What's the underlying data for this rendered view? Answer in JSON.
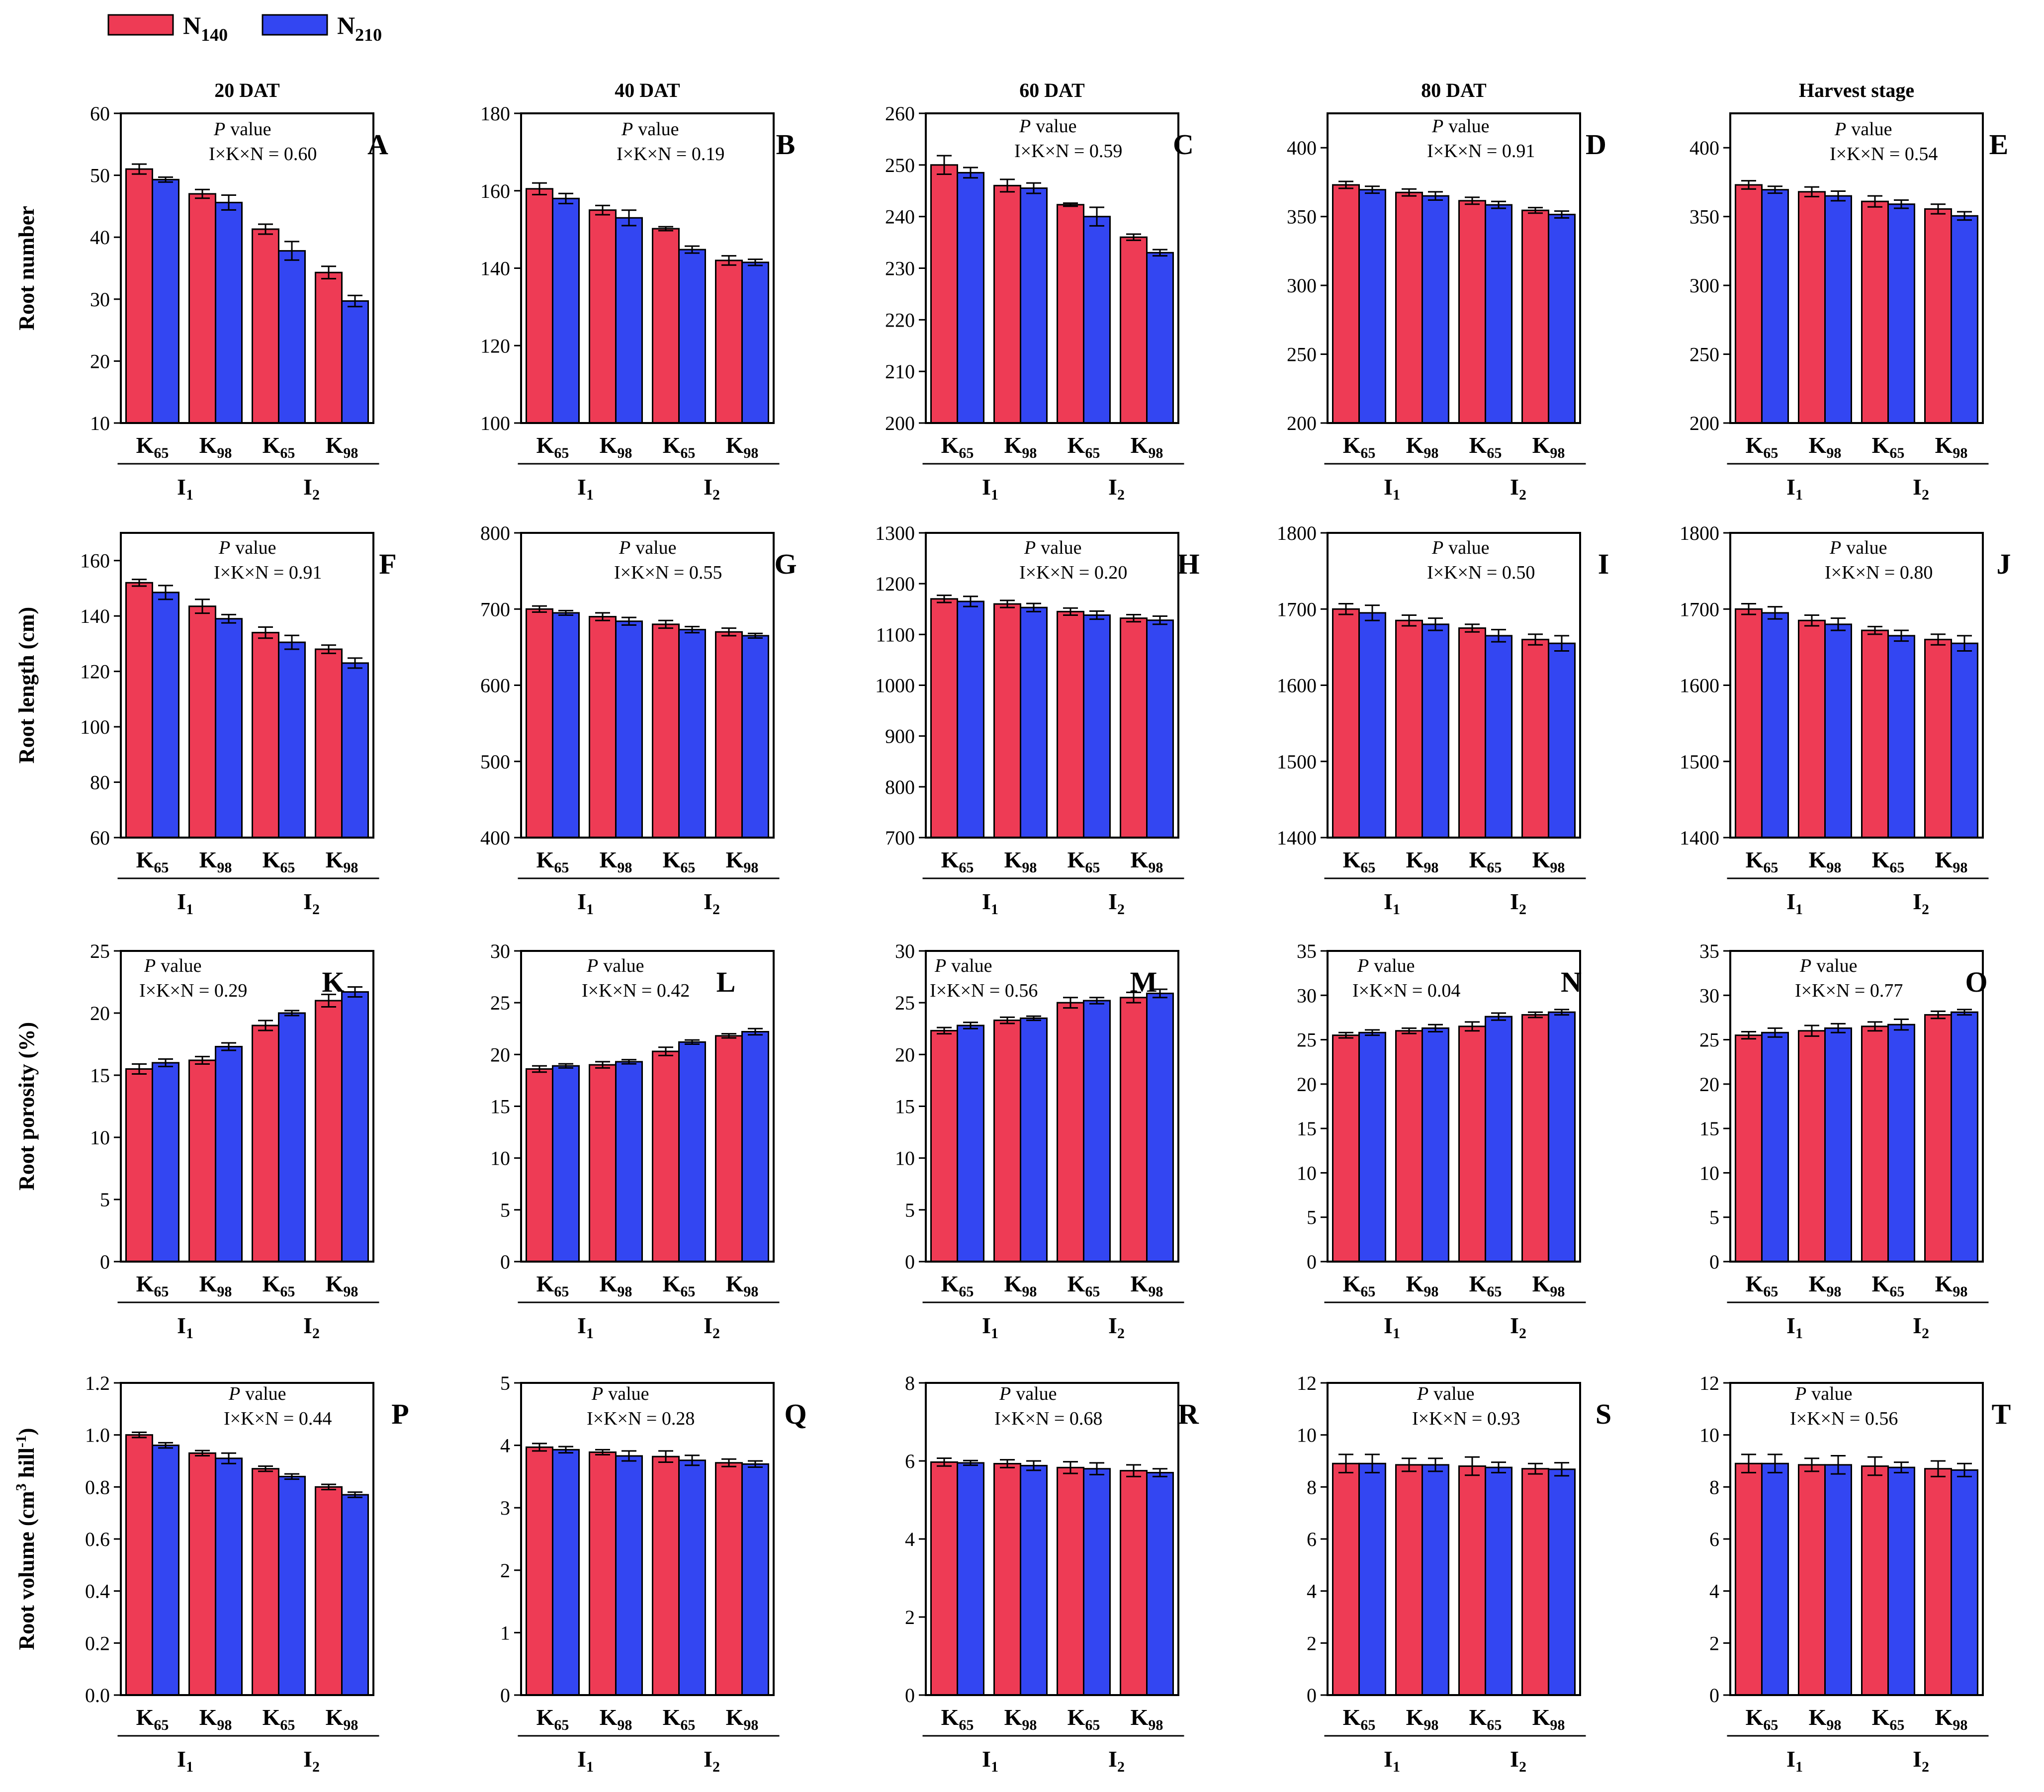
{
  "legend": [
    {
      "name": "N",
      "sub": "140",
      "color": "#EE3B55"
    },
    {
      "name": "N",
      "sub": "210",
      "color": "#3346F2"
    }
  ],
  "categories": [
    {
      "main": "K",
      "sub": "65"
    },
    {
      "main": "K",
      "sub": "98"
    },
    {
      "main": "K",
      "sub": "65"
    },
    {
      "main": "K",
      "sub": "98"
    }
  ],
  "groups": [
    {
      "main": "I",
      "sub": "1"
    },
    {
      "main": "I",
      "sub": "2"
    }
  ],
  "stage_titles": [
    "20 DAT",
    "40 DAT",
    "60 DAT",
    "80 DAT",
    "Harvest stage"
  ],
  "rows": [
    {
      "ylabel": "Root number",
      "ylabel_super": ""
    },
    {
      "ylabel": "Root length (cm)",
      "ylabel_super": ""
    },
    {
      "ylabel": "Root porosity (%)",
      "ylabel_super": ""
    },
    {
      "ylabel": "Root volume (cm",
      "ylabel_super": "3",
      "ylabel_tail": " hill",
      "ylabel_super2": "-1",
      "ylabel_end": ")"
    }
  ],
  "p_value_label": "value",
  "p_value_italic": "P",
  "chart_data": [
    {
      "type": "bar",
      "letter": "A",
      "row": 0,
      "col": 0,
      "interaction": "I×K×N = 0.60",
      "ylim": [
        10,
        60
      ],
      "yticks": [
        10,
        20,
        30,
        40,
        50,
        60
      ],
      "series": [
        {
          "name": "N140",
          "values": [
            51.0,
            47.0,
            41.3,
            34.3
          ],
          "errors": [
            0.8,
            0.7,
            0.8,
            1.0
          ]
        },
        {
          "name": "N210",
          "values": [
            49.3,
            45.6,
            37.8,
            29.7
          ],
          "errors": [
            0.4,
            1.2,
            1.5,
            0.9
          ]
        }
      ]
    },
    {
      "type": "bar",
      "letter": "B",
      "row": 0,
      "col": 1,
      "interaction": "I×K×N = 0.19",
      "ylim": [
        100,
        180
      ],
      "yticks": [
        100,
        120,
        140,
        160,
        180
      ],
      "series": [
        {
          "name": "N140",
          "values": [
            160.5,
            155.0,
            150.2,
            142.0
          ],
          "errors": [
            1.5,
            1.2,
            0.5,
            1.2
          ]
        },
        {
          "name": "N210",
          "values": [
            158.0,
            153.0,
            144.8,
            141.5
          ],
          "errors": [
            1.3,
            2.0,
            0.9,
            0.8
          ]
        }
      ]
    },
    {
      "type": "bar",
      "letter": "C",
      "row": 0,
      "col": 2,
      "interaction": "I×K×N = 0.59",
      "ylim": [
        200,
        260
      ],
      "yticks": [
        200,
        210,
        220,
        230,
        240,
        250,
        260
      ],
      "series": [
        {
          "name": "N140",
          "values": [
            250.0,
            246.0,
            242.3,
            236.0
          ],
          "errors": [
            1.8,
            1.2,
            0.3,
            0.6
          ]
        },
        {
          "name": "N210",
          "values": [
            248.5,
            245.5,
            240.0,
            233.0
          ],
          "errors": [
            1.0,
            1.0,
            1.8,
            0.6
          ]
        }
      ]
    },
    {
      "type": "bar",
      "letter": "D",
      "row": 0,
      "col": 3,
      "interaction": "I×K×N = 0.91",
      "ylim": [
        200,
        425
      ],
      "yticks": [
        200,
        250,
        300,
        350,
        400
      ],
      "series": [
        {
          "name": "N140",
          "values": [
            373.0,
            367.5,
            361.5,
            354.5
          ],
          "errors": [
            2.5,
            2.5,
            2.5,
            2.0
          ]
        },
        {
          "name": "N210",
          "values": [
            369.5,
            365.0,
            358.5,
            351.5
          ],
          "errors": [
            2.5,
            3.0,
            2.5,
            2.5
          ]
        }
      ]
    },
    {
      "type": "bar",
      "letter": "E",
      "row": 0,
      "col": 4,
      "interaction": "I×K×N = 0.54",
      "ylim": [
        200,
        425
      ],
      "yticks": [
        200,
        250,
        300,
        350,
        400
      ],
      "series": [
        {
          "name": "N140",
          "values": [
            373.0,
            368.0,
            361.0,
            355.5
          ],
          "errors": [
            3.0,
            3.5,
            4.0,
            3.5
          ]
        },
        {
          "name": "N210",
          "values": [
            369.5,
            365.0,
            359.0,
            350.5
          ],
          "errors": [
            2.5,
            3.5,
            3.0,
            3.0
          ]
        }
      ]
    },
    {
      "type": "bar",
      "letter": "F",
      "row": 1,
      "col": 0,
      "interaction": "I×K×N = 0.91",
      "ylim": [
        60,
        170
      ],
      "yticks": [
        60,
        80,
        100,
        120,
        140,
        160
      ],
      "series": [
        {
          "name": "N140",
          "values": [
            152.0,
            143.5,
            134.0,
            128.0
          ],
          "errors": [
            1.2,
            2.5,
            2.0,
            1.5
          ]
        },
        {
          "name": "N210",
          "values": [
            148.5,
            139.0,
            130.5,
            123.0
          ],
          "errors": [
            2.5,
            1.5,
            2.5,
            1.8
          ]
        }
      ]
    },
    {
      "type": "bar",
      "letter": "G",
      "row": 1,
      "col": 1,
      "interaction": "I×K×N = 0.55",
      "ylim": [
        400,
        800
      ],
      "yticks": [
        400,
        500,
        600,
        700,
        800
      ],
      "series": [
        {
          "name": "N140",
          "values": [
            700.0,
            690.0,
            680.0,
            670.0
          ],
          "errors": [
            4.0,
            5.0,
            5.0,
            5.0
          ]
        },
        {
          "name": "N210",
          "values": [
            695.0,
            684.0,
            673.0,
            665.0
          ],
          "errors": [
            3.0,
            5.0,
            4.0,
            3.0
          ]
        }
      ]
    },
    {
      "type": "bar",
      "letter": "H",
      "row": 1,
      "col": 2,
      "interaction": "I×K×N = 0.20",
      "ylim": [
        700,
        1300
      ],
      "yticks": [
        700,
        800,
        900,
        1000,
        1100,
        1200,
        1300
      ],
      "series": [
        {
          "name": "N140",
          "values": [
            1170.0,
            1160.0,
            1145.0,
            1132.0
          ],
          "errors": [
            7.0,
            7.0,
            7.0,
            7.0
          ]
        },
        {
          "name": "N210",
          "values": [
            1165.0,
            1153.0,
            1138.0,
            1128.0
          ],
          "errors": [
            10.0,
            8.0,
            8.0,
            8.0
          ]
        }
      ]
    },
    {
      "type": "bar",
      "letter": "I",
      "row": 1,
      "col": 3,
      "interaction": "I×K×N = 0.50",
      "ylim": [
        1400,
        1800
      ],
      "yticks": [
        1400,
        1500,
        1600,
        1700,
        1800
      ],
      "series": [
        {
          "name": "N140",
          "values": [
            1700.0,
            1685.0,
            1675.0,
            1660.0
          ],
          "errors": [
            7.0,
            7.0,
            5.0,
            7.0
          ]
        },
        {
          "name": "N210",
          "values": [
            1695.0,
            1680.0,
            1665.0,
            1655.0
          ],
          "errors": [
            10.0,
            8.0,
            8.0,
            10.0
          ]
        }
      ]
    },
    {
      "type": "bar",
      "letter": "J",
      "row": 1,
      "col": 4,
      "interaction": "I×K×N = 0.80",
      "ylim": [
        1400,
        1800
      ],
      "yticks": [
        1400,
        1500,
        1600,
        1700,
        1800
      ],
      "series": [
        {
          "name": "N140",
          "values": [
            1700.0,
            1685.0,
            1672.0,
            1660.0
          ],
          "errors": [
            7.0,
            7.0,
            5.0,
            7.0
          ]
        },
        {
          "name": "N210",
          "values": [
            1695.0,
            1680.0,
            1665.0,
            1655.0
          ],
          "errors": [
            8.0,
            8.0,
            7.0,
            10.0
          ]
        }
      ]
    },
    {
      "type": "bar",
      "letter": "K",
      "row": 2,
      "col": 0,
      "interaction": "I×K×N = 0.29",
      "ylim": [
        0,
        25
      ],
      "yticks": [
        0,
        5,
        10,
        15,
        20,
        25
      ],
      "series": [
        {
          "name": "N140",
          "values": [
            15.5,
            16.2,
            19.0,
            21.0
          ],
          "errors": [
            0.4,
            0.3,
            0.4,
            0.5
          ]
        },
        {
          "name": "N210",
          "values": [
            16.0,
            17.3,
            20.0,
            21.7
          ],
          "errors": [
            0.3,
            0.3,
            0.2,
            0.4
          ]
        }
      ]
    },
    {
      "type": "bar",
      "letter": "L",
      "row": 2,
      "col": 1,
      "interaction": "I×K×N = 0.42",
      "ylim": [
        0,
        30
      ],
      "yticks": [
        0,
        5,
        10,
        15,
        20,
        25,
        30
      ],
      "series": [
        {
          "name": "N140",
          "values": [
            18.6,
            19.0,
            20.3,
            21.8
          ],
          "errors": [
            0.3,
            0.3,
            0.4,
            0.2
          ]
        },
        {
          "name": "N210",
          "values": [
            18.9,
            19.3,
            21.2,
            22.2
          ],
          "errors": [
            0.2,
            0.2,
            0.2,
            0.3
          ]
        }
      ]
    },
    {
      "type": "bar",
      "letter": "M",
      "row": 2,
      "col": 2,
      "interaction": "I×K×N = 0.56",
      "ylim": [
        0,
        30
      ],
      "yticks": [
        0,
        5,
        10,
        15,
        20,
        25,
        30
      ],
      "series": [
        {
          "name": "N140",
          "values": [
            22.3,
            23.3,
            25.0,
            25.5
          ],
          "errors": [
            0.3,
            0.3,
            0.5,
            0.5
          ]
        },
        {
          "name": "N210",
          "values": [
            22.8,
            23.5,
            25.2,
            25.9
          ],
          "errors": [
            0.3,
            0.2,
            0.3,
            0.4
          ]
        }
      ]
    },
    {
      "type": "bar",
      "letter": "N",
      "row": 2,
      "col": 3,
      "interaction": "I×K×N = 0.04",
      "ylim": [
        0,
        35
      ],
      "yticks": [
        0,
        5,
        10,
        15,
        20,
        25,
        30,
        35
      ],
      "series": [
        {
          "name": "N140",
          "values": [
            25.5,
            26.0,
            26.5,
            27.8
          ],
          "errors": [
            0.3,
            0.3,
            0.5,
            0.3
          ]
        },
        {
          "name": "N210",
          "values": [
            25.8,
            26.3,
            27.6,
            28.1
          ],
          "errors": [
            0.3,
            0.4,
            0.4,
            0.3
          ]
        }
      ]
    },
    {
      "type": "bar",
      "letter": "O",
      "row": 2,
      "col": 4,
      "interaction": "I×K×N = 0.77",
      "ylim": [
        0,
        35
      ],
      "yticks": [
        0,
        5,
        10,
        15,
        20,
        25,
        30,
        35
      ],
      "series": [
        {
          "name": "N140",
          "values": [
            25.5,
            26.0,
            26.5,
            27.8
          ],
          "errors": [
            0.4,
            0.6,
            0.5,
            0.4
          ]
        },
        {
          "name": "N210",
          "values": [
            25.8,
            26.3,
            26.7,
            28.1
          ],
          "errors": [
            0.5,
            0.5,
            0.6,
            0.3
          ]
        }
      ]
    },
    {
      "type": "bar",
      "letter": "P",
      "row": 3,
      "col": 0,
      "interaction": "I×K×N = 0.44",
      "ylim": [
        0,
        1.2
      ],
      "yticks": [
        "0.0",
        "0.2",
        "0.4",
        "0.6",
        "0.8",
        "1.0",
        "1.2"
      ],
      "series": [
        {
          "name": "N140",
          "values": [
            1.0,
            0.93,
            0.87,
            0.8
          ],
          "errors": [
            0.01,
            0.01,
            0.01,
            0.01
          ]
        },
        {
          "name": "N210",
          "values": [
            0.96,
            0.91,
            0.84,
            0.77
          ],
          "errors": [
            0.01,
            0.02,
            0.01,
            0.01
          ]
        }
      ]
    },
    {
      "type": "bar",
      "letter": "Q",
      "row": 3,
      "col": 1,
      "interaction": "I×K×N = 0.28",
      "ylim": [
        0,
        5
      ],
      "yticks": [
        0,
        1,
        2,
        3,
        4,
        5
      ],
      "series": [
        {
          "name": "N140",
          "values": [
            3.97,
            3.89,
            3.82,
            3.72
          ],
          "errors": [
            0.06,
            0.04,
            0.09,
            0.06
          ]
        },
        {
          "name": "N210",
          "values": [
            3.93,
            3.83,
            3.76,
            3.7
          ],
          "errors": [
            0.05,
            0.08,
            0.08,
            0.05
          ]
        }
      ]
    },
    {
      "type": "bar",
      "letter": "R",
      "row": 3,
      "col": 2,
      "interaction": "I×K×N = 0.68",
      "ylim": [
        0,
        8
      ],
      "yticks": [
        0,
        2,
        4,
        6,
        8
      ],
      "series": [
        {
          "name": "N140",
          "values": [
            5.97,
            5.93,
            5.83,
            5.75
          ],
          "errors": [
            0.1,
            0.1,
            0.15,
            0.15
          ]
        },
        {
          "name": "N210",
          "values": [
            5.95,
            5.88,
            5.8,
            5.7
          ],
          "errors": [
            0.06,
            0.12,
            0.15,
            0.1
          ]
        }
      ]
    },
    {
      "type": "bar",
      "letter": "S",
      "row": 3,
      "col": 3,
      "interaction": "I×K×N = 0.93",
      "ylim": [
        0,
        12
      ],
      "yticks": [
        0,
        2,
        4,
        6,
        8,
        10,
        12
      ],
      "series": [
        {
          "name": "N140",
          "values": [
            8.9,
            8.85,
            8.8,
            8.7
          ],
          "errors": [
            0.35,
            0.25,
            0.35,
            0.2
          ]
        },
        {
          "name": "N210",
          "values": [
            8.9,
            8.85,
            8.75,
            8.68
          ],
          "errors": [
            0.35,
            0.25,
            0.2,
            0.25
          ]
        }
      ]
    },
    {
      "type": "bar",
      "letter": "T",
      "row": 3,
      "col": 4,
      "interaction": "I×K×N = 0.56",
      "ylim": [
        0,
        12
      ],
      "yticks": [
        0,
        2,
        4,
        6,
        8,
        10,
        12
      ],
      "series": [
        {
          "name": "N140",
          "values": [
            8.9,
            8.85,
            8.8,
            8.7
          ],
          "errors": [
            0.35,
            0.25,
            0.35,
            0.3
          ]
        },
        {
          "name": "N210",
          "values": [
            8.9,
            8.85,
            8.75,
            8.65
          ],
          "errors": [
            0.35,
            0.35,
            0.2,
            0.25
          ]
        }
      ]
    }
  ]
}
